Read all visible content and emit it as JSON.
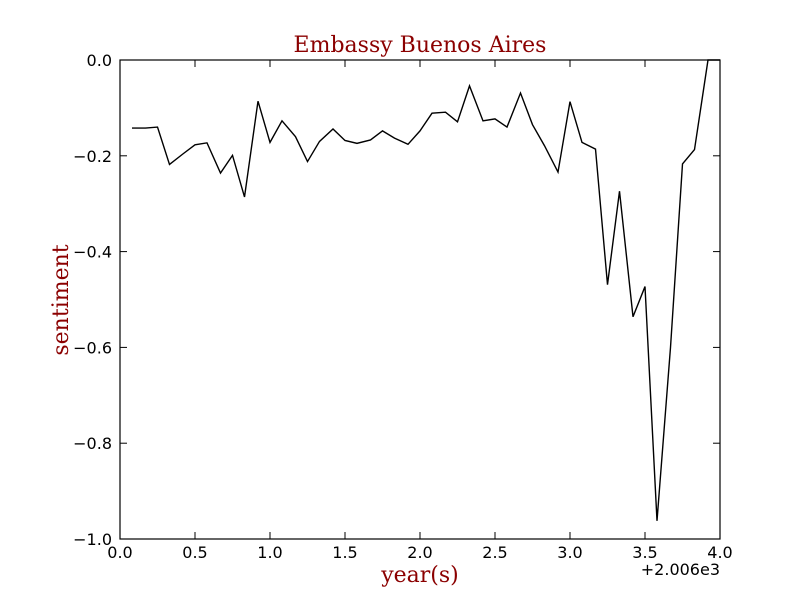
{
  "chart_data": {
    "type": "line",
    "title": "Embassy Buenos Aires",
    "xlabel": "year(s)",
    "ylabel": "sentiment",
    "x_offset_label": "+2.006e3",
    "xlim": [
      0.0,
      4.0
    ],
    "ylim": [
      -1.0,
      0.0
    ],
    "x_ticks": [
      "0.0",
      "0.5",
      "1.0",
      "1.5",
      "2.0",
      "2.5",
      "3.0",
      "3.5",
      "4.0"
    ],
    "y_ticks": [
      "0.0",
      "−0.2",
      "−0.4",
      "−0.6",
      "−0.8",
      "−1.0"
    ],
    "grid": false,
    "colors": {
      "line": "#000000",
      "title": "#8b0000",
      "axis_label": "#8b0000"
    },
    "series": [
      {
        "x": [
          0.08,
          0.17,
          0.25,
          0.33,
          0.42,
          0.5,
          0.58,
          0.67,
          0.75,
          0.83,
          0.92,
          1.0,
          1.08,
          1.17,
          1.25,
          1.33,
          1.42,
          1.5,
          1.58,
          1.67,
          1.75,
          1.83,
          1.92,
          2.0,
          2.08,
          2.17,
          2.25,
          2.33,
          2.42,
          2.5,
          2.58,
          2.67,
          2.75,
          2.83,
          2.92,
          3.0,
          3.08,
          3.17,
          3.25,
          3.33,
          3.42,
          3.5,
          3.58,
          3.67,
          3.75,
          3.83,
          3.92,
          4.0
        ],
        "y": [
          -0.142,
          -0.142,
          -0.14,
          -0.218,
          -0.196,
          -0.177,
          -0.173,
          -0.236,
          -0.199,
          -0.286,
          -0.086,
          -0.172,
          -0.127,
          -0.16,
          -0.212,
          -0.17,
          -0.144,
          -0.168,
          -0.174,
          -0.167,
          -0.148,
          -0.163,
          -0.176,
          -0.148,
          -0.111,
          -0.109,
          -0.129,
          -0.054,
          -0.127,
          -0.123,
          -0.14,
          -0.069,
          -0.135,
          -0.179,
          -0.234,
          -0.087,
          -0.172,
          -0.186,
          -0.469,
          -0.274,
          -0.536,
          -0.473,
          -0.962,
          -0.6,
          -0.217,
          -0.187,
          0.0,
          0.0
        ]
      }
    ]
  }
}
